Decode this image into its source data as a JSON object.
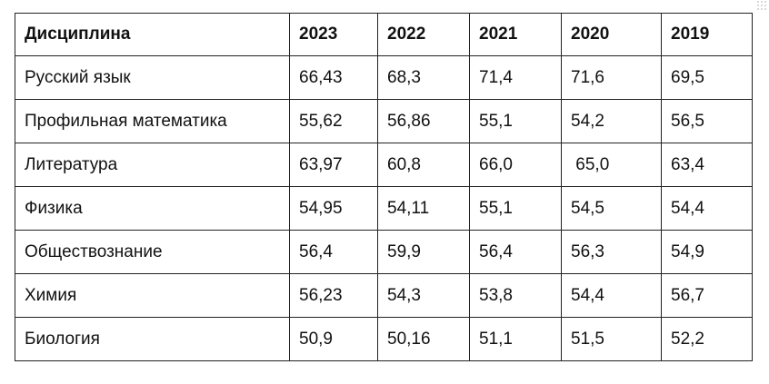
{
  "table": {
    "header": [
      "Дисциплина",
      "2023",
      "2022",
      "2021",
      "2020",
      "2019"
    ],
    "rows": [
      [
        "Русский язык",
        "66,43",
        "68,3",
        "71,4",
        "71,6",
        "69,5"
      ],
      [
        "Профильная математика",
        "55,62",
        "56,86",
        "55,1",
        "54,2",
        "56,5"
      ],
      [
        "Литература",
        "63,97",
        "60,8",
        "66,0",
        " 65,0",
        "63,4"
      ],
      [
        "Физика",
        "54,95",
        "54,11",
        "55,1",
        "54,5",
        "54,4"
      ],
      [
        "Обществознание",
        "56,4",
        "59,9",
        "56,4",
        "56,3",
        "54,9"
      ],
      [
        "Химия",
        "56,23",
        "54,3",
        "53,8",
        "54,4",
        "56,7"
      ],
      [
        "Биология",
        "50,9",
        "50,16",
        "51,1",
        "51,5",
        "52,2"
      ]
    ]
  }
}
